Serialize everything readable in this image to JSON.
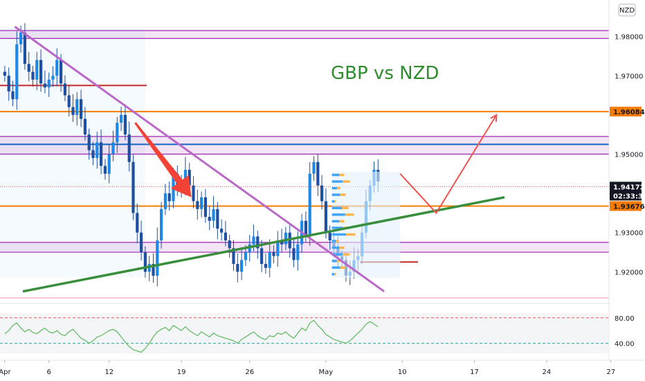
{
  "chart_data": {
    "type": "candlestick",
    "title": "GBP vs NZD",
    "currency": "NZD",
    "price_axis": {
      "ylim": [
        1.913,
        1.984
      ],
      "ticks": [
        "1.98000",
        "1.97000",
        "1.95000",
        "1.93000",
        "1.92000"
      ],
      "tick_values": [
        1.98,
        1.97,
        1.95,
        1.93,
        1.92
      ]
    },
    "price_labels": [
      {
        "label": "1.96084",
        "value": 1.96084,
        "color": "#f57c00",
        "text_color": "#131722"
      },
      {
        "label": "1.94172",
        "value": 1.94172,
        "color": "#131722",
        "text_color": "#ffffff"
      },
      {
        "label": "02:33:34",
        "value": 1.9396,
        "color": "#131722",
        "text_color": "#ffffff"
      },
      {
        "label": "1.93676",
        "value": 1.93676,
        "color": "#f57c00",
        "text_color": "#131722"
      }
    ],
    "time_axis": {
      "labels": [
        "Apr",
        "6",
        "12",
        "19",
        "26",
        "May",
        "10",
        "17",
        "24",
        "27"
      ],
      "label_positions_index": [
        0,
        11,
        26,
        44,
        61,
        80,
        99,
        117,
        135,
        151
      ]
    },
    "horizontal_levels": [
      {
        "kind": "band",
        "from": 1.9795,
        "to": 1.9815,
        "color": "#9c27b0"
      },
      {
        "kind": "band",
        "from": 1.95,
        "to": 1.9545,
        "color": "#9c27b0"
      },
      {
        "kind": "band",
        "from": 1.925,
        "to": 1.9275,
        "color": "#9c27b0"
      },
      {
        "kind": "line",
        "value": 1.96084,
        "color": "#f57c00"
      },
      {
        "kind": "line",
        "value": 1.93676,
        "color": "#f57c00"
      },
      {
        "kind": "line",
        "value": 1.9525,
        "color": "#1565c0"
      },
      {
        "kind": "short-line",
        "value": 1.9675,
        "color": "#c62828"
      },
      {
        "kind": "short-line",
        "value": 1.9225,
        "color": "#c62828"
      }
    ],
    "series": [
      {
        "name": "",
        "type": "candlestick",
        "closes": [
          1.97,
          1.966,
          1.964,
          1.978,
          1.981,
          1.973,
          1.971,
          1.969,
          1.974,
          1.968,
          1.967,
          1.969,
          1.97,
          1.974,
          1.968,
          1.965,
          1.962,
          1.96,
          1.964,
          1.959,
          1.955,
          1.951,
          1.949,
          1.953,
          1.947,
          1.945,
          1.95,
          1.953,
          1.958,
          1.96,
          1.955,
          1.948,
          1.935,
          1.93,
          1.925,
          1.92,
          1.922,
          1.919,
          1.928,
          1.936,
          1.94,
          1.938,
          1.945,
          1.942,
          1.941,
          1.946,
          1.942,
          1.938,
          1.936,
          1.939,
          1.934,
          1.933,
          1.936,
          1.931,
          1.93,
          1.928,
          1.926,
          1.922,
          1.92,
          1.923,
          1.925,
          1.927,
          1.929,
          1.926,
          1.922,
          1.921,
          1.925,
          1.924,
          1.928,
          1.927,
          1.93,
          1.926,
          1.923,
          1.927,
          1.933,
          1.929,
          1.945,
          1.948,
          1.942,
          1.938,
          1.93,
          1.928,
          1.926,
          1.924,
          1.923,
          1.919,
          1.92,
          1.923,
          1.924,
          1.93,
          1.938,
          1.942,
          1.946,
          1.943
        ],
        "x_indices_start": 0
      }
    ],
    "rsi": {
      "levels": [
        "80.00",
        "40.00"
      ],
      "level_values": [
        80,
        40
      ],
      "ylim": [
        20,
        95
      ],
      "values": [
        55,
        60,
        68,
        72,
        64,
        58,
        62,
        57,
        55,
        60,
        64,
        58,
        56,
        60,
        54,
        52,
        58,
        62,
        55,
        48,
        45,
        40,
        44,
        50,
        52,
        56,
        60,
        62,
        58,
        50,
        42,
        35,
        30,
        28,
        26,
        32,
        40,
        50,
        58,
        62,
        65,
        60,
        68,
        64,
        60,
        66,
        60,
        56,
        52,
        58,
        54,
        50,
        56,
        52,
        50,
        48,
        46,
        44,
        40,
        46,
        50,
        54,
        58,
        52,
        48,
        46,
        52,
        50,
        56,
        54,
        58,
        52,
        48,
        56,
        64,
        60,
        72,
        76,
        68,
        62,
        54,
        50,
        46,
        44,
        42,
        40,
        44,
        50,
        56,
        62,
        70,
        74,
        70,
        66
      ]
    },
    "annotations": {
      "downtrend_line": {
        "from": {
          "i": 3,
          "p": 1.9825
        },
        "to": {
          "i": 95,
          "p": 1.915
        },
        "color": "#ba68c8"
      },
      "uptrend_line": {
        "from": {
          "i": 5,
          "p": 1.915
        },
        "to": {
          "i": 125,
          "p": 1.939
        },
        "color": "#388e3c"
      },
      "red_arrow_down": {
        "from": {
          "i": 33,
          "p": 1.958
        },
        "to": {
          "i": 47,
          "p": 1.939
        },
        "color": "#f44336"
      },
      "projection_path": [
        {
          "i": 99,
          "p": 1.945
        },
        {
          "i": 108,
          "p": 1.935
        },
        {
          "i": 123,
          "p": 1.96
        }
      ],
      "volume_profile_box": {
        "i_from": 82,
        "i_to": 99,
        "p_from": 1.9185,
        "p_to": 1.9455
      }
    }
  }
}
